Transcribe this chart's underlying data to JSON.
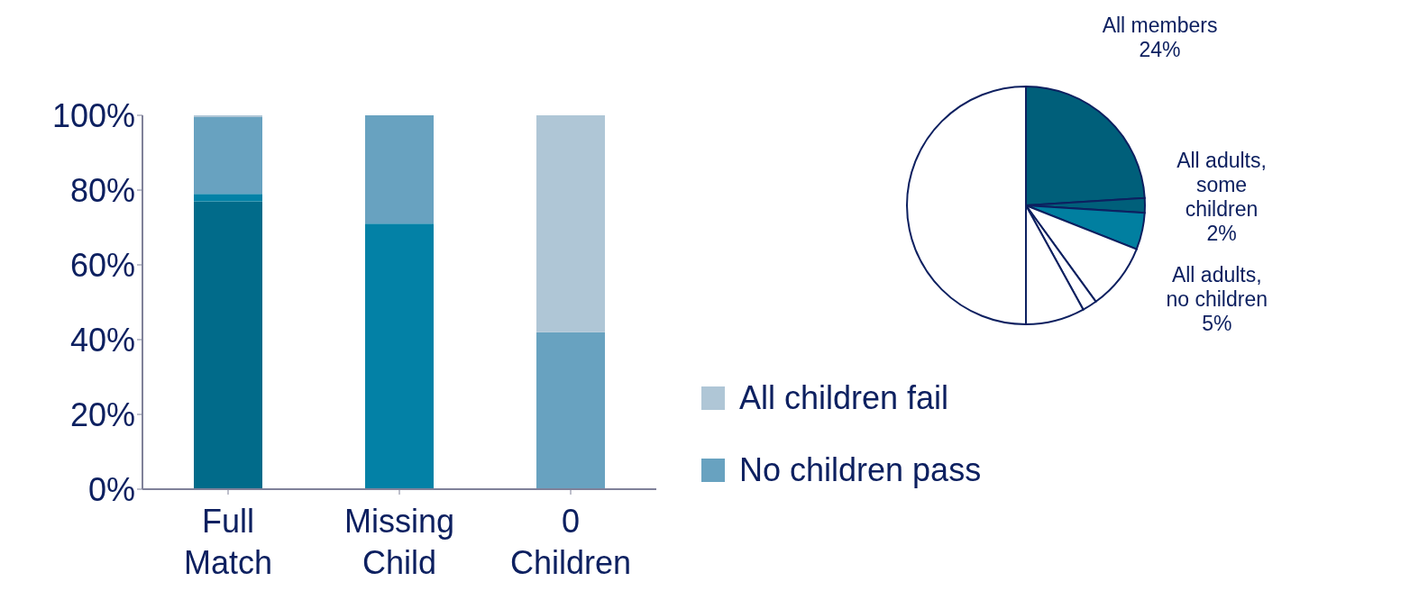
{
  "chart_data": [
    {
      "type": "bar",
      "stacked": true,
      "categories": [
        "Full Match",
        "Missing Child",
        "0 Children"
      ],
      "series": [
        {
          "color": "#016b8a",
          "values": [
            77,
            0,
            0
          ]
        },
        {
          "color": "#0381a6",
          "values": [
            2,
            71,
            0
          ]
        },
        {
          "name": "No children pass",
          "color": "#68a2c0",
          "values": [
            20.5,
            29,
            42
          ]
        },
        {
          "name": "All children fail",
          "color": "#afc6d6",
          "values": [
            0.5,
            0,
            58
          ]
        }
      ],
      "ylim": [
        0,
        100
      ],
      "yticks": [
        {
          "value": 0,
          "label": "0%"
        },
        {
          "value": 20,
          "label": "20%"
        },
        {
          "value": 40,
          "label": "40%"
        },
        {
          "value": 60,
          "label": "60%"
        },
        {
          "value": 80,
          "label": "80%"
        },
        {
          "value": 100,
          "label": "100%"
        }
      ],
      "grid": false,
      "legend": "right"
    },
    {
      "type": "pie",
      "categories": [
        "All members",
        "All adults, some children",
        "All adults, no children",
        null,
        null,
        null,
        null
      ],
      "values": [
        24,
        2,
        5,
        9,
        2,
        8,
        50
      ],
      "colors": [
        "#005f7a",
        "#005f7a",
        "#017fa0",
        "#ffffff",
        "#ffffff",
        "#ffffff",
        "#ffffff"
      ],
      "value_labels": [
        "24%",
        "2%",
        "5%",
        null,
        null,
        null,
        null
      ]
    }
  ]
}
